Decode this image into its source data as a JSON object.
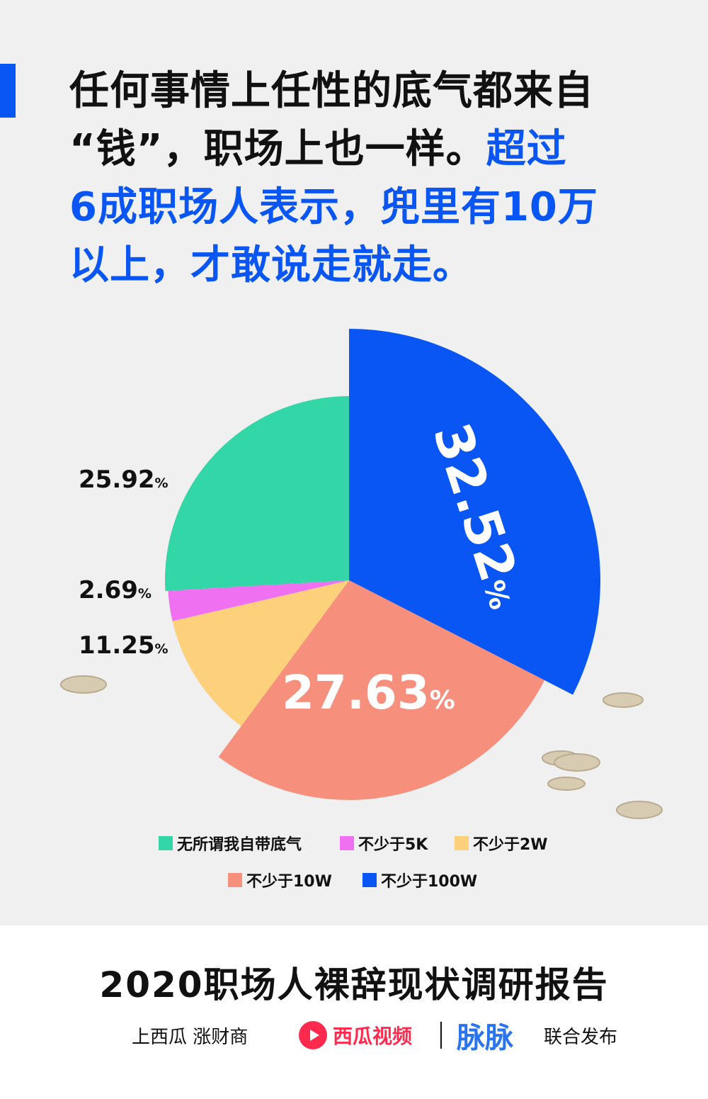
{
  "headline": {
    "line1": "任何事情上任性的底气都来自",
    "line2_black": "“钱”，职场上也一样。",
    "line2_blue": "超过",
    "line3": "6成职场人表示，兜里有10万",
    "line4": "以上，才敢说走就走。"
  },
  "colors": {
    "accent": "#0a56f5",
    "green": "#33d6a6",
    "magenta": "#f070f2",
    "yellow": "#fdd07c",
    "salmon": "#f78f7d",
    "blue": "#0a56f5"
  },
  "chart_data": {
    "type": "pie",
    "categories": [
      "无所谓我自带底气",
      "不少于5K",
      "不少于2W",
      "不少于10W",
      "不少于100W"
    ],
    "values": [
      25.92,
      2.69,
      11.25,
      27.63,
      32.52
    ],
    "labels": [
      "25.92",
      "2.69",
      "11.25",
      "27.63",
      "32.52"
    ],
    "unit": "%",
    "legend_position": "bottom"
  },
  "legend": {
    "items": [
      {
        "label": "无所谓我自带底气",
        "color": "#33d6a6"
      },
      {
        "label": "不少于5K",
        "color": "#f070f2"
      },
      {
        "label": "不少于2W",
        "color": "#fdd07c"
      },
      {
        "label": "不少于10W",
        "color": "#f78f7d"
      },
      {
        "label": "不少于100W",
        "color": "#0a56f5"
      }
    ]
  },
  "footer": {
    "report_title": "2020职场人裸辞现状调研报告",
    "partner1": "上西瓜 涨财商",
    "partner2": "西瓜视频",
    "partner3": "脉脉",
    "partner4": "联合发布"
  }
}
